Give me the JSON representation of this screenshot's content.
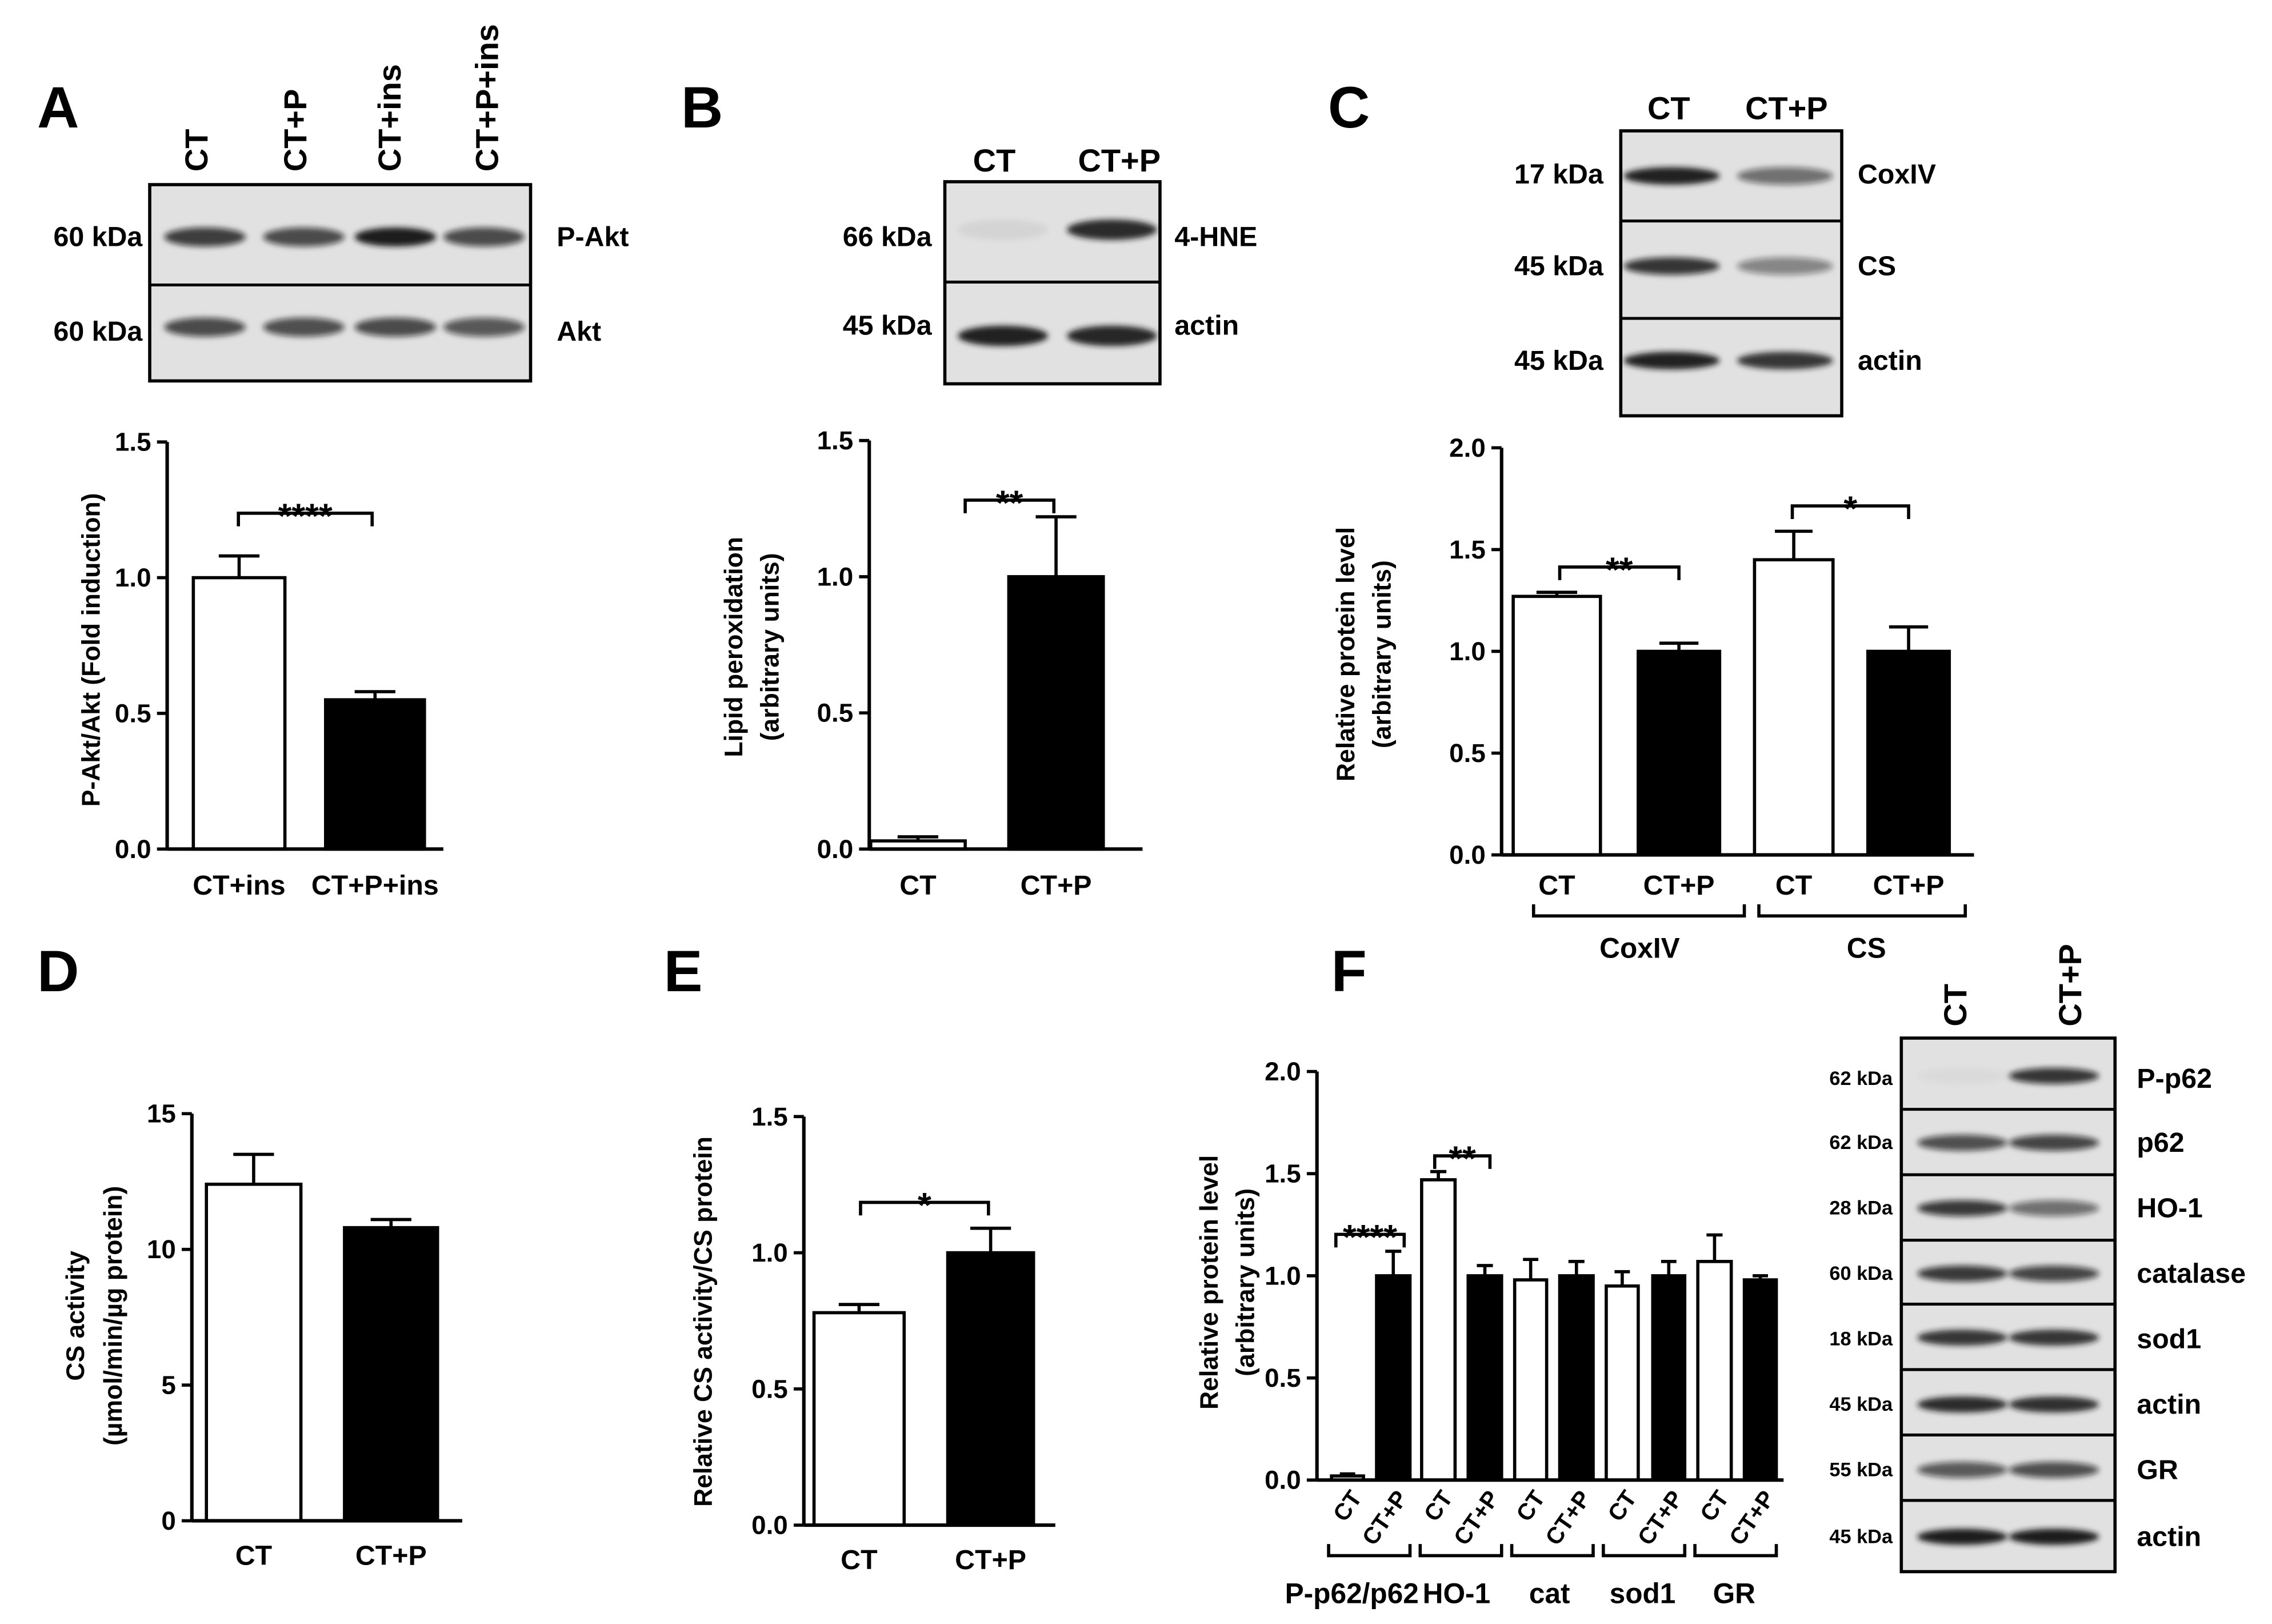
{
  "colors": {
    "blot_background": "#e1e1e1",
    "band": "#141414",
    "axis": "#000000"
  },
  "blots": {
    "A": {
      "lanes": [
        "CT",
        "CT+P",
        "CT+ins",
        "CT+P+ins"
      ],
      "rows": [
        {
          "kda": "60 kDa",
          "protein": "P-Akt",
          "intensity": [
            0.78,
            0.72,
            0.97,
            0.72
          ]
        },
        {
          "kda": "60 kDa",
          "protein": "Akt",
          "intensity": [
            0.72,
            0.7,
            0.72,
            0.66
          ]
        }
      ]
    },
    "B": {
      "lanes": [
        "CT",
        "CT+P"
      ],
      "rows": [
        {
          "kda": "66 kDa",
          "protein": "4-HNE",
          "intensity": [
            0.06,
            0.9
          ]
        },
        {
          "kda": "45 kDa",
          "protein": "actin",
          "intensity": [
            0.95,
            0.92
          ]
        }
      ]
    },
    "C": {
      "lanes": [
        "CT",
        "CT+P"
      ],
      "rows": [
        {
          "kda": "17 kDa",
          "protein": "CoxIV",
          "intensity": [
            0.95,
            0.55
          ]
        },
        {
          "kda": "45 kDa",
          "protein": "CS",
          "intensity": [
            0.82,
            0.45
          ]
        },
        {
          "kda": "45 kDa",
          "protein": "actin",
          "intensity": [
            0.95,
            0.85
          ]
        }
      ]
    },
    "F": {
      "lanes": [
        "CT",
        "CT+P"
      ],
      "rows": [
        {
          "kda": "62 kDa",
          "protein": "P-p62",
          "intensity": [
            0.03,
            0.82
          ]
        },
        {
          "kda": "62 kDa",
          "protein": "p62",
          "intensity": [
            0.7,
            0.75
          ]
        },
        {
          "kda": "28 kDa",
          "protein": "HO-1",
          "intensity": [
            0.8,
            0.55
          ]
        },
        {
          "kda": "60 kDa",
          "protein": "catalase",
          "intensity": [
            0.8,
            0.75
          ]
        },
        {
          "kda": "18 kDa",
          "protein": "sod1",
          "intensity": [
            0.85,
            0.85
          ]
        },
        {
          "kda": "45 kDa",
          "protein": "actin",
          "intensity": [
            0.9,
            0.88
          ]
        },
        {
          "kda": "55 kDa",
          "protein": "GR",
          "intensity": [
            0.65,
            0.7
          ]
        },
        {
          "kda": "45 kDa",
          "protein": "actin",
          "intensity": [
            0.97,
            0.97
          ]
        }
      ]
    }
  },
  "chart_data": [
    {
      "panel": "A",
      "type": "bar",
      "title": "",
      "categories": [
        "CT+ins",
        "CT+P+ins"
      ],
      "values": [
        1.0,
        0.55
      ],
      "errors": [
        0.08,
        0.03
      ],
      "bar_colors": [
        "#ffffff",
        "#000000"
      ],
      "xlabel": "",
      "ylabel": [
        "P-Akt/Akt (Fold induction)"
      ],
      "ylim": [
        0,
        1.5
      ],
      "yticks": [
        "0.0",
        "0.5",
        "1.0",
        "1.5"
      ],
      "significance": [
        {
          "between": [
            0,
            1
          ],
          "label": "****"
        }
      ],
      "groups": [],
      "grid": false
    },
    {
      "panel": "B",
      "type": "bar",
      "title": "",
      "categories": [
        "CT",
        "CT+P"
      ],
      "values": [
        0.03,
        1.0
      ],
      "errors": [
        0.015,
        0.22
      ],
      "bar_colors": [
        "#ffffff",
        "#000000"
      ],
      "xlabel": "",
      "ylabel": [
        "Lipid peroxidation",
        "(arbitrary units)"
      ],
      "ylim": [
        0,
        1.5
      ],
      "yticks": [
        "0.0",
        "0.5",
        "1.0",
        "1.5"
      ],
      "significance": [
        {
          "between": [
            0,
            1
          ],
          "label": "**"
        }
      ],
      "groups": [],
      "grid": false
    },
    {
      "panel": "C",
      "type": "bar",
      "title": "",
      "categories": [
        "CT",
        "CT+P",
        "CT",
        "CT+P"
      ],
      "values": [
        1.27,
        1.0,
        1.45,
        1.0
      ],
      "errors": [
        0.02,
        0.04,
        0.14,
        0.12
      ],
      "bar_colors": [
        "#ffffff",
        "#000000",
        "#ffffff",
        "#000000"
      ],
      "xlabel": "",
      "ylabel": [
        "Relative protein level",
        "(arbitrary units)"
      ],
      "ylim": [
        0,
        2.0
      ],
      "yticks": [
        "0.0",
        "0.5",
        "1.0",
        "1.5",
        "2.0"
      ],
      "significance": [
        {
          "between": [
            0,
            1
          ],
          "label": "**"
        },
        {
          "between": [
            2,
            3
          ],
          "label": "*"
        }
      ],
      "groups": [
        {
          "label": "CoxIV",
          "bars": [
            0,
            1
          ]
        },
        {
          "label": "CS",
          "bars": [
            2,
            3
          ]
        }
      ],
      "grid": false
    },
    {
      "panel": "D",
      "type": "bar",
      "title": "",
      "categories": [
        "CT",
        "CT+P"
      ],
      "values": [
        12.4,
        10.8
      ],
      "errors": [
        1.1,
        0.3
      ],
      "bar_colors": [
        "#ffffff",
        "#000000"
      ],
      "xlabel": "",
      "ylabel": [
        "CS activity",
        "(µmol/min/µg protein)"
      ],
      "ylim": [
        0,
        15
      ],
      "yticks": [
        "0",
        "5",
        "10",
        "15"
      ],
      "significance": [],
      "groups": [],
      "grid": false
    },
    {
      "panel": "E",
      "type": "bar",
      "title": "",
      "categories": [
        "CT",
        "CT+P"
      ],
      "values": [
        0.78,
        1.0
      ],
      "errors": [
        0.03,
        0.09
      ],
      "bar_colors": [
        "#ffffff",
        "#000000"
      ],
      "xlabel": "",
      "ylabel": [
        "Relative CS activity/CS protein"
      ],
      "ylim": [
        0,
        1.5
      ],
      "yticks": [
        "0.0",
        "0.5",
        "1.0",
        "1.5"
      ],
      "significance": [
        {
          "between": [
            0,
            1
          ],
          "label": "*"
        }
      ],
      "groups": [],
      "grid": false
    },
    {
      "panel": "F",
      "type": "bar",
      "title": "",
      "categories": [
        "CT",
        "CT+P",
        "CT",
        "CT+P",
        "CT",
        "CT+P",
        "CT",
        "CT+P",
        "CT",
        "CT+P"
      ],
      "values": [
        0.02,
        1.0,
        1.47,
        1.0,
        0.98,
        1.0,
        0.95,
        1.0,
        1.07,
        0.98
      ],
      "errors": [
        0.01,
        0.12,
        0.04,
        0.05,
        0.1,
        0.07,
        0.07,
        0.07,
        0.13,
        0.02
      ],
      "bar_colors": [
        "#ffffff",
        "#000000",
        "#ffffff",
        "#000000",
        "#ffffff",
        "#000000",
        "#ffffff",
        "#000000",
        "#ffffff",
        "#000000"
      ],
      "xlabel": "",
      "ylabel": [
        "Relative protein level",
        "(arbitrary units)"
      ],
      "ylim": [
        0,
        2.0
      ],
      "yticks": [
        "0.0",
        "0.5",
        "1.0",
        "1.5",
        "2.0"
      ],
      "significance": [
        {
          "between": [
            0,
            1
          ],
          "label": "****"
        },
        {
          "between": [
            2,
            3
          ],
          "label": "**"
        }
      ],
      "groups": [
        {
          "label": "P-p62/p62",
          "bars": [
            0,
            1
          ]
        },
        {
          "label": "HO-1",
          "bars": [
            2,
            3
          ]
        },
        {
          "label": "cat",
          "bars": [
            4,
            5
          ]
        },
        {
          "label": "sod1",
          "bars": [
            6,
            7
          ]
        },
        {
          "label": "GR",
          "bars": [
            8,
            9
          ]
        }
      ],
      "grid": false
    }
  ]
}
